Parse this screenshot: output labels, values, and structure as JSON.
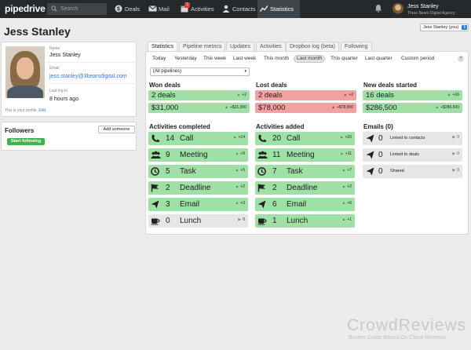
{
  "topbar": {
    "logo": "pipedrive",
    "search_placeholder": "Search",
    "nav": [
      {
        "label": "Deals",
        "icon": "dollar-icon"
      },
      {
        "label": "Mail",
        "icon": "mail-icon"
      },
      {
        "label": "Activities",
        "icon": "calendar-icon",
        "badge": "1"
      },
      {
        "label": "Contacts",
        "icon": "person-icon"
      },
      {
        "label": "Statistics",
        "icon": "chart-icon",
        "active": true
      }
    ],
    "user_name": "Jess Stanley",
    "user_company": "Three Bears Digital Agency"
  },
  "page": {
    "title": "Jess Stanley",
    "user_select": "Jess Stanley (you)"
  },
  "profile": {
    "name_label": "Name",
    "name": "Jess Stanley",
    "email_label": "Email",
    "email": "jess.stanley@3bearsdigital.com",
    "last_login_label": "Last log-in",
    "last_login": "8 hours ago",
    "note": "This is your profile.",
    "edit": "Edit"
  },
  "followers": {
    "title": "Followers",
    "add_button": "Add someone",
    "start_button": "Start following"
  },
  "tabs": [
    "Statistics",
    "Pipeline metrics",
    "Updates",
    "Activities",
    "Dropbox log (beta)",
    "Following"
  ],
  "periods": [
    "Today",
    "Yesterday",
    "This week",
    "Last week",
    "This month",
    "Last month",
    "This quarter",
    "Last quarter",
    "Custom period"
  ],
  "help": "?",
  "pipeline_select": "(All pipelines)",
  "won": {
    "title": "Won deals",
    "count": "2 deals",
    "count_delta": "+2",
    "value": "$31,000",
    "value_delta": "+$31,000"
  },
  "lost": {
    "title": "Lost deals",
    "count": "2 deals",
    "count_delta": "+2",
    "value": "$78,000",
    "value_delta": "+$78,000"
  },
  "new_deals": {
    "title": "New deals started",
    "count": "16 deals",
    "count_delta": "+16",
    "value": "$286,500",
    "value_delta": "+$286,500"
  },
  "completed": {
    "title": "Activities completed",
    "items": [
      {
        "n": "14",
        "label": "Call",
        "delta": "+14",
        "icon": "phone-icon",
        "state": "up"
      },
      {
        "n": "9",
        "label": "Meeting",
        "delta": "+9",
        "icon": "people-icon",
        "state": "up"
      },
      {
        "n": "5",
        "label": "Task",
        "delta": "+5",
        "icon": "clock-icon",
        "state": "up"
      },
      {
        "n": "2",
        "label": "Deadline",
        "delta": "+2",
        "icon": "flag-icon",
        "state": "up"
      },
      {
        "n": "3",
        "label": "Email",
        "delta": "+3",
        "icon": "send-icon",
        "state": "up"
      },
      {
        "n": "0",
        "label": "Lunch",
        "delta": "0",
        "icon": "cup-icon",
        "state": "flat"
      }
    ]
  },
  "added": {
    "title": "Activities added",
    "items": [
      {
        "n": "20",
        "label": "Call",
        "delta": "+20",
        "icon": "phone-icon",
        "state": "up"
      },
      {
        "n": "11",
        "label": "Meeting",
        "delta": "+11",
        "icon": "people-icon",
        "state": "up"
      },
      {
        "n": "7",
        "label": "Task",
        "delta": "+7",
        "icon": "clock-icon",
        "state": "up"
      },
      {
        "n": "2",
        "label": "Deadline",
        "delta": "+2",
        "icon": "flag-icon",
        "state": "up"
      },
      {
        "n": "6",
        "label": "Email",
        "delta": "+6",
        "icon": "send-icon",
        "state": "up"
      },
      {
        "n": "1",
        "label": "Lunch",
        "delta": "+1",
        "icon": "cup-icon",
        "state": "up"
      }
    ]
  },
  "emails": {
    "title": "Emails (0)",
    "items": [
      {
        "n": "0",
        "label": "Linked to contacts",
        "delta": "0"
      },
      {
        "n": "0",
        "label": "Linked to deals",
        "delta": "0"
      },
      {
        "n": "0",
        "label": "Shared",
        "delta": "0"
      }
    ]
  },
  "watermark": {
    "title": "CrowdReviews",
    "subtitle": "Buyers Guide Based On Client Reviews"
  },
  "colors": {
    "topbar": "#26292c",
    "green": "#9fe0a7",
    "red": "#f2a0a0",
    "accent": "#317ae2",
    "follow": "#3fb34f"
  }
}
